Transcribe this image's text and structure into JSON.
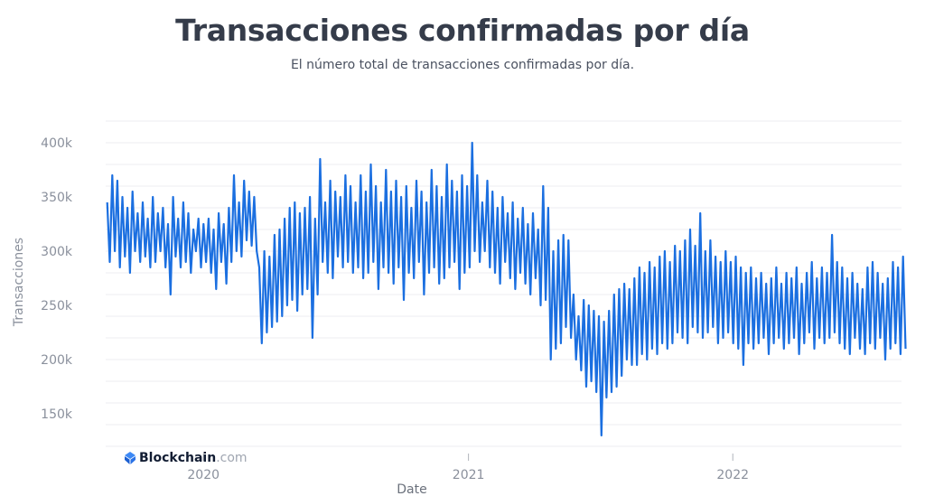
{
  "chart_data": {
    "type": "line",
    "title": "Transacciones confirmadas por día",
    "subtitle": "El número total de transacciones confirmadas por día.",
    "ylabel": "Transacciones",
    "xlabel": "Date",
    "ylim": [
      120000,
      420000
    ],
    "yticks": [
      150000,
      200000,
      250000,
      300000,
      350000,
      400000
    ],
    "ytick_labels": [
      "150k",
      "200k",
      "250k",
      "300k",
      "350k",
      "400k"
    ],
    "xticks": [
      "2020-01-01",
      "2021-01-01",
      "2022-01-01"
    ],
    "xtick_labels": [
      "2020",
      "2021",
      "2022"
    ],
    "xlim": [
      "2019-08-19",
      "2022-08-22"
    ],
    "grid": true,
    "line_color": "#1b6fe0",
    "x_start": "2019-08-19",
    "x_step_days": 7,
    "weekly_highs": [
      345,
      370,
      365,
      350,
      340,
      355,
      335,
      345,
      330,
      350,
      335,
      340,
      325,
      350,
      330,
      345,
      335,
      320,
      330,
      325,
      330,
      320,
      335,
      325,
      340,
      370,
      345,
      365,
      355,
      350,
      285,
      300,
      295,
      315,
      320,
      330,
      340,
      345,
      335,
      340,
      350,
      330,
      385,
      345,
      365,
      355,
      350,
      370,
      360,
      345,
      370,
      355,
      380,
      360,
      345,
      375,
      355,
      365,
      350,
      360,
      340,
      365,
      355,
      345,
      375,
      360,
      350,
      380,
      365,
      355,
      370,
      360,
      400,
      370,
      345,
      365,
      355,
      340,
      350,
      335,
      345,
      330,
      340,
      325,
      335,
      320,
      360,
      340,
      300,
      310,
      315,
      310,
      260,
      240,
      255,
      250,
      245,
      240,
      235,
      245,
      260,
      265,
      270,
      265,
      275,
      285,
      280,
      290,
      285,
      295,
      300,
      290,
      305,
      300,
      310,
      320,
      305,
      335,
      300,
      310,
      295,
      290,
      300,
      290,
      295,
      285,
      280,
      285,
      275,
      280,
      270,
      275,
      285,
      270,
      280,
      275,
      285,
      270,
      280,
      290,
      275,
      285,
      280,
      315,
      290,
      285,
      275,
      280,
      270,
      265,
      285,
      290,
      280,
      270,
      275,
      290,
      285,
      295
    ],
    "weekly_lows": [
      290,
      300,
      285,
      295,
      280,
      300,
      290,
      295,
      285,
      290,
      300,
      285,
      260,
      295,
      285,
      290,
      280,
      300,
      285,
      290,
      280,
      265,
      290,
      270,
      290,
      300,
      295,
      310,
      305,
      300,
      215,
      225,
      230,
      235,
      240,
      250,
      255,
      245,
      260,
      265,
      220,
      260,
      290,
      280,
      275,
      295,
      285,
      290,
      280,
      285,
      275,
      280,
      290,
      265,
      285,
      280,
      270,
      285,
      255,
      280,
      275,
      290,
      260,
      280,
      285,
      270,
      275,
      285,
      290,
      265,
      280,
      285,
      300,
      290,
      300,
      285,
      280,
      270,
      290,
      275,
      265,
      280,
      270,
      260,
      275,
      250,
      255,
      200,
      210,
      215,
      230,
      220,
      200,
      190,
      175,
      180,
      170,
      130,
      165,
      170,
      175,
      185,
      200,
      195,
      195,
      205,
      200,
      210,
      205,
      215,
      210,
      215,
      225,
      220,
      215,
      230,
      225,
      220,
      225,
      230,
      215,
      220,
      225,
      215,
      210,
      195,
      215,
      210,
      215,
      220,
      205,
      215,
      220,
      210,
      215,
      220,
      205,
      215,
      225,
      210,
      220,
      215,
      220,
      225,
      215,
      210,
      205,
      220,
      210,
      205,
      215,
      210,
      220,
      200,
      210,
      215,
      205,
      210
    ],
    "value_unit": "thousands"
  },
  "branding": {
    "logo_bold": "Blockchain",
    "logo_light": ".com"
  }
}
